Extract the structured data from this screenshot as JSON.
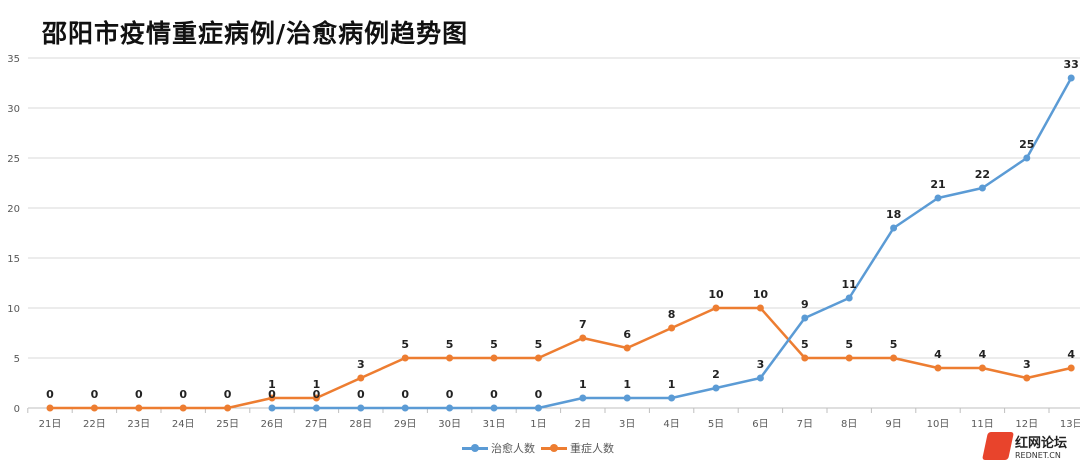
{
  "chart_data": {
    "type": "line",
    "title": "邵阳市疫情重症病例/治愈病例趋势图",
    "categories": [
      "21日",
      "22日",
      "23日",
      "24日",
      "25日",
      "26日",
      "27日",
      "28日",
      "29日",
      "30日",
      "31日",
      "1日",
      "2日",
      "3日",
      "4日",
      "5日",
      "6日",
      "7日",
      "8日",
      "9日",
      "10日",
      "11日",
      "12日",
      "13日"
    ],
    "ylim": [
      0,
      35
    ],
    "yticks": [
      0,
      5,
      10,
      15,
      20,
      25,
      30,
      35
    ],
    "grid": true,
    "legend_position": "bottom",
    "series": [
      {
        "name": "治愈人数",
        "color": "#5B9BD5",
        "values": [
          null,
          null,
          null,
          null,
          null,
          0,
          0,
          0,
          0,
          0,
          0,
          0,
          1,
          1,
          1,
          2,
          3,
          9,
          11,
          18,
          21,
          22,
          25,
          33
        ]
      },
      {
        "name": "重症人数",
        "color": "#ED7D31",
        "values": [
          0,
          0,
          0,
          0,
          0,
          1,
          1,
          3,
          5,
          5,
          5,
          5,
          7,
          6,
          8,
          10,
          10,
          5,
          5,
          5,
          4,
          4,
          3,
          4
        ]
      }
    ]
  },
  "watermark": {
    "name": "红网论坛",
    "domain": "REDNET.CN"
  }
}
